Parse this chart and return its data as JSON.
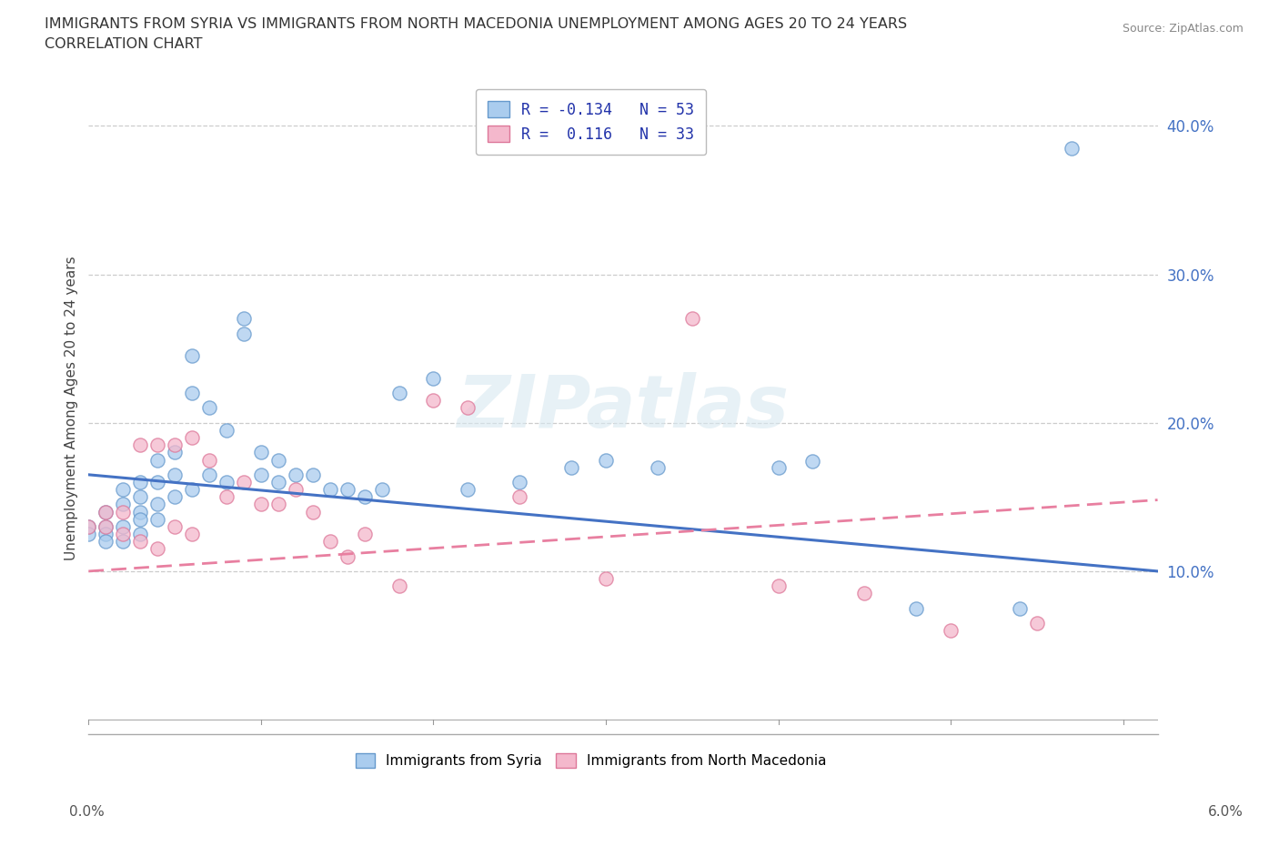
{
  "title_line1": "IMMIGRANTS FROM SYRIA VS IMMIGRANTS FROM NORTH MACEDONIA UNEMPLOYMENT AMONG AGES 20 TO 24 YEARS",
  "title_line2": "CORRELATION CHART",
  "source_text": "Source: ZipAtlas.com",
  "ylabel": "Unemployment Among Ages 20 to 24 years",
  "xlim": [
    0.0,
    0.062
  ],
  "ylim": [
    -0.01,
    0.43
  ],
  "ytick_vals": [
    0.0,
    0.1,
    0.2,
    0.3,
    0.4
  ],
  "ytick_labels": [
    "",
    "10.0%",
    "20.0%",
    "30.0%",
    "40.0%"
  ],
  "legend_syria": "Immigrants from Syria",
  "legend_nmacedonia": "Immigrants from North Macedonia",
  "r_syria": -0.134,
  "n_syria": 53,
  "r_nmacedonia": 0.116,
  "n_nmacedonia": 33,
  "color_syria_fill": "#aaccee",
  "color_syria_edge": "#6699cc",
  "color_nmac_fill": "#f4b8cc",
  "color_nmac_edge": "#dd7799",
  "color_syria_line": "#4472c4",
  "color_nmac_line": "#e87fa0",
  "watermark": "ZIPatlas",
  "background_color": "#ffffff",
  "grid_color": "#cccccc",
  "syria_x": [
    0.0,
    0.0,
    0.001,
    0.001,
    0.001,
    0.001,
    0.002,
    0.002,
    0.002,
    0.002,
    0.003,
    0.003,
    0.003,
    0.003,
    0.003,
    0.004,
    0.004,
    0.004,
    0.004,
    0.005,
    0.005,
    0.005,
    0.006,
    0.006,
    0.006,
    0.007,
    0.007,
    0.008,
    0.008,
    0.009,
    0.009,
    0.01,
    0.01,
    0.011,
    0.011,
    0.012,
    0.013,
    0.014,
    0.015,
    0.016,
    0.017,
    0.018,
    0.02,
    0.022,
    0.025,
    0.028,
    0.03,
    0.033,
    0.04,
    0.042,
    0.048,
    0.054,
    0.057
  ],
  "syria_y": [
    0.13,
    0.125,
    0.14,
    0.13,
    0.125,
    0.12,
    0.155,
    0.145,
    0.13,
    0.12,
    0.16,
    0.15,
    0.14,
    0.135,
    0.125,
    0.175,
    0.16,
    0.145,
    0.135,
    0.18,
    0.165,
    0.15,
    0.245,
    0.22,
    0.155,
    0.21,
    0.165,
    0.195,
    0.16,
    0.27,
    0.26,
    0.18,
    0.165,
    0.175,
    0.16,
    0.165,
    0.165,
    0.155,
    0.155,
    0.15,
    0.155,
    0.22,
    0.23,
    0.155,
    0.16,
    0.17,
    0.175,
    0.17,
    0.17,
    0.174,
    0.075,
    0.075,
    0.385
  ],
  "nmac_x": [
    0.0,
    0.001,
    0.001,
    0.002,
    0.002,
    0.003,
    0.003,
    0.004,
    0.004,
    0.005,
    0.005,
    0.006,
    0.006,
    0.007,
    0.008,
    0.009,
    0.01,
    0.011,
    0.012,
    0.013,
    0.014,
    0.015,
    0.016,
    0.018,
    0.02,
    0.022,
    0.025,
    0.03,
    0.035,
    0.04,
    0.045,
    0.05,
    0.055
  ],
  "nmac_y": [
    0.13,
    0.14,
    0.13,
    0.14,
    0.125,
    0.185,
    0.12,
    0.185,
    0.115,
    0.185,
    0.13,
    0.19,
    0.125,
    0.175,
    0.15,
    0.16,
    0.145,
    0.145,
    0.155,
    0.14,
    0.12,
    0.11,
    0.125,
    0.09,
    0.215,
    0.21,
    0.15,
    0.095,
    0.27,
    0.09,
    0.085,
    0.06,
    0.065
  ]
}
